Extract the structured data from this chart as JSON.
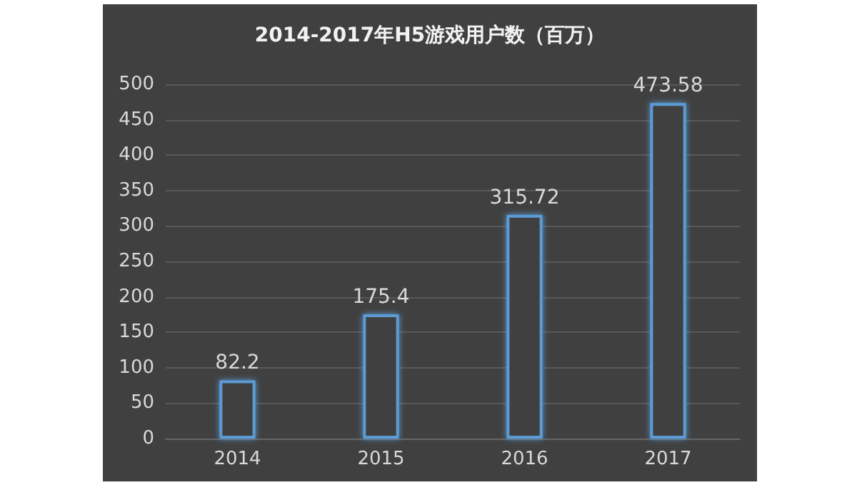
{
  "chart_data": {
    "type": "bar",
    "title": "2014-2017年H5游戏用户数（百万）",
    "categories": [
      "2014",
      "2015",
      "2016",
      "2017"
    ],
    "values": [
      82.2,
      175.4,
      315.72,
      473.58
    ],
    "color": "#5b9bd5",
    "ylim": [
      0,
      500
    ],
    "yticks": [
      0,
      50,
      100,
      150,
      200,
      250,
      300,
      350,
      400,
      450,
      500
    ],
    "grid": "y",
    "data_labels": true
  }
}
